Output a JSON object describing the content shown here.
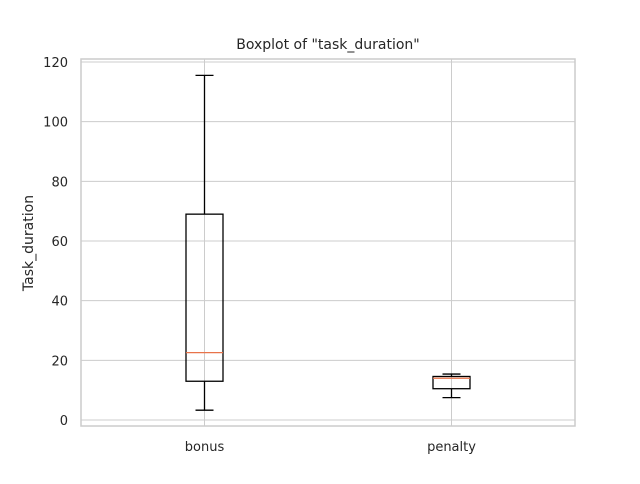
{
  "chart_data": {
    "type": "box",
    "title": "Boxplot of \"task_duration\"",
    "xlabel": "",
    "ylabel": "Task_duration",
    "ylim": [
      -2,
      121
    ],
    "yticks": [
      0,
      20,
      40,
      60,
      80,
      100,
      120
    ],
    "grid": true,
    "categories": [
      "bonus",
      "penalty"
    ],
    "boxes": [
      {
        "category": "bonus",
        "whisker_low": 3.3,
        "q1": 13.0,
        "median": 22.6,
        "q3": 69.0,
        "whisker_high": 115.5
      },
      {
        "category": "penalty",
        "whisker_low": 7.5,
        "q1": 10.5,
        "median": 14.0,
        "q3": 14.6,
        "whisker_high": 15.4
      }
    ],
    "colors": {
      "box": "#000000",
      "median": "#e8734a",
      "grid": "#cccccc",
      "frame": "#cccccc",
      "text": "#262626"
    }
  }
}
